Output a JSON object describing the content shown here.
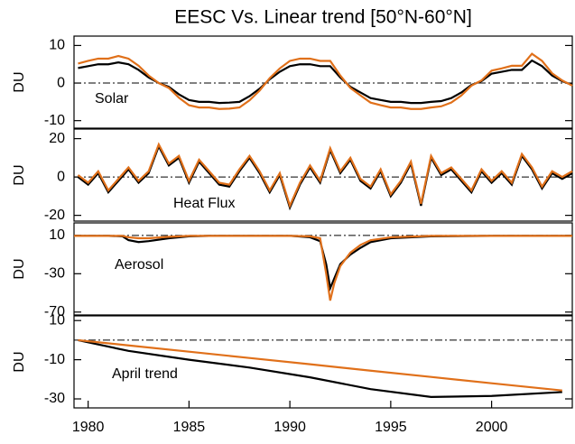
{
  "chart_data": [
    {
      "type": "line",
      "title": "EESC Vs. Linear trend [50°N-60°N]",
      "ylabel": "DU",
      "label": "Solar",
      "xlim": [
        1979.3,
        2004
      ],
      "ylim": [
        -12,
        12.5
      ],
      "yticks": [
        10,
        0,
        -10
      ],
      "reference": 0,
      "x": [
        1979.5,
        1980,
        1980.5,
        1981,
        1981.5,
        1982,
        1982.5,
        1983,
        1983.5,
        1984,
        1984.5,
        1985,
        1985.5,
        1986,
        1986.5,
        1987,
        1987.5,
        1988,
        1988.5,
        1989,
        1989.5,
        1990,
        1990.5,
        1991,
        1991.5,
        1992,
        1992.5,
        1993,
        1993.5,
        1994,
        1994.5,
        1995,
        1995.5,
        1996,
        1996.5,
        1997,
        1997.5,
        1998,
        1998.5,
        1999,
        1999.5,
        2000,
        2000.5,
        2001,
        2001.5,
        2002,
        2002.5,
        2003,
        2003.5,
        2004
      ],
      "series": [
        {
          "color": "#000000",
          "values": [
            4,
            4.5,
            5,
            5,
            5.5,
            5,
            3.5,
            1.5,
            0,
            -1,
            -3,
            -4.5,
            -5,
            -5,
            -5.3,
            -5.2,
            -5,
            -3.5,
            -1.5,
            1,
            3,
            4.5,
            5,
            5,
            4.5,
            4.5,
            1.5,
            -1,
            -2.5,
            -4,
            -4.5,
            -5,
            -5,
            -5.3,
            -5.3,
            -5,
            -4.8,
            -4,
            -2.5,
            -0.5,
            0.5,
            2.5,
            3,
            3.5,
            3.5,
            6,
            4.5,
            2,
            0.5,
            -0.5
          ]
        },
        {
          "color": "#e0701a",
          "values": [
            5.2,
            5.9,
            6.5,
            6.5,
            7.2,
            6.5,
            4.6,
            2,
            0,
            -1.3,
            -3.9,
            -5.9,
            -6.5,
            -6.5,
            -6.9,
            -6.8,
            -6.5,
            -4.6,
            -2,
            1.3,
            3.9,
            5.9,
            6.5,
            6.5,
            5.9,
            5.9,
            2,
            -1.3,
            -3.3,
            -5.2,
            -5.9,
            -6.5,
            -6.5,
            -6.9,
            -6.9,
            -6.5,
            -6.2,
            -5.2,
            -3.3,
            -0.7,
            0.7,
            3.3,
            3.9,
            4.6,
            4.6,
            7.8,
            5.9,
            2.6,
            0.7,
            -0.7
          ]
        }
      ]
    },
    {
      "type": "line",
      "ylabel": "DU",
      "label": "Heat Flux",
      "xlim": [
        1979.3,
        2004
      ],
      "ylim": [
        -23,
        25
      ],
      "yticks": [
        20,
        0,
        -20
      ],
      "reference": 0,
      "x": [
        1979.5,
        1980,
        1980.5,
        1981,
        1981.5,
        1982,
        1982.5,
        1983,
        1983.5,
        1984,
        1984.5,
        1985,
        1985.5,
        1986,
        1986.5,
        1987,
        1987.5,
        1988,
        1988.5,
        1989,
        1989.5,
        1990,
        1990.5,
        1991,
        1991.5,
        1992,
        1992.5,
        1993,
        1993.5,
        1994,
        1994.5,
        1995,
        1995.5,
        1996,
        1996.5,
        1997,
        1997.5,
        1998,
        1998.5,
        1999,
        1999.5,
        2000,
        2000.5,
        2001,
        2001.5,
        2002,
        2002.5,
        2003,
        2003.5,
        2004
      ],
      "series": [
        {
          "color": "#000000",
          "values": [
            0,
            -4,
            2,
            -8,
            -2,
            4,
            -3,
            2,
            16,
            6,
            10,
            -3,
            8,
            2,
            -4,
            -5,
            3,
            10,
            2,
            -8,
            1,
            -16,
            -4,
            5,
            -3,
            14,
            2,
            9,
            -2,
            -6,
            3,
            -10,
            -3,
            7,
            -15,
            10,
            1,
            4,
            -2,
            -8,
            3,
            -3,
            2,
            -4,
            11,
            4,
            -6,
            2,
            -1,
            2
          ]
        },
        {
          "color": "#e0701a",
          "values": [
            1,
            -3,
            3,
            -7,
            -1,
            5,
            -2,
            3,
            17,
            7,
            11,
            -2,
            9,
            3,
            -3,
            -4,
            4,
            11,
            3,
            -7,
            2,
            -15,
            -3,
            6,
            -2,
            15,
            3,
            10,
            -1,
            -5,
            4,
            -9,
            -2,
            8,
            -14,
            11,
            2,
            5,
            -1,
            -7,
            4,
            -2,
            3,
            -3,
            12,
            5,
            -5,
            3,
            0,
            3
          ]
        }
      ]
    },
    {
      "type": "line",
      "ylabel": "DU",
      "label": "Aerosol",
      "xlim": [
        1979.3,
        2004
      ],
      "ylim": [
        -73,
        23
      ],
      "yticks": [
        10,
        -30,
        -70
      ],
      "reference": 10,
      "x": [
        1979.3,
        1981,
        1981.7,
        1982,
        1982.5,
        1983,
        1984,
        1985,
        1986,
        1990,
        1991,
        1991.5,
        1991.8,
        1992,
        1992.2,
        1992.5,
        1993,
        1993.5,
        1994,
        1995,
        1997,
        2000,
        2004
      ],
      "series": [
        {
          "color": "#000000",
          "values": [
            9.5,
            9.5,
            9,
            5,
            3,
            4,
            7,
            9,
            9.5,
            9.5,
            8,
            4,
            -20,
            -45,
            -35,
            -20,
            -10,
            -3,
            3,
            7,
            9,
            9.5,
            9.5
          ]
        },
        {
          "color": "#e0701a",
          "values": [
            9.5,
            9.5,
            9.5,
            8,
            7,
            7,
            8.5,
            9.5,
            9.5,
            9.5,
            9,
            7,
            -30,
            -58,
            -40,
            -22,
            -8,
            0,
            5,
            8,
            9.5,
            9.5,
            9.5
          ]
        }
      ]
    },
    {
      "type": "line",
      "ylabel": "DU",
      "label": "April trend",
      "xlim": [
        1979.3,
        2004
      ],
      "ylim": [
        -34.6,
        12.4
      ],
      "yticks": [
        10,
        -10,
        -30
      ],
      "reference": 0,
      "xticks": [
        1980,
        1985,
        1990,
        1995,
        2000
      ],
      "x": [
        1979.5,
        1982,
        1985,
        1988,
        1991,
        1994,
        1997,
        2000,
        2003.5
      ],
      "series": [
        {
          "color": "#000000",
          "values": [
            0,
            -5.5,
            -10,
            -14,
            -19,
            -25,
            -29,
            -28.5,
            -26.5
          ]
        },
        {
          "color": "#e0701a",
          "values": [
            0,
            -2.7,
            -5.9,
            -9.1,
            -12.3,
            -15.6,
            -18.8,
            -22,
            -25.7
          ]
        }
      ]
    }
  ]
}
